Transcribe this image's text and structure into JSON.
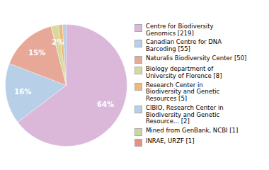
{
  "chart_data": {
    "type": "pie",
    "categories": [
      "Centre for Biodiversity\nGenomics [219]",
      "Canadian Centre for DNA\nBarcoding [55]",
      "Naturalis Biodiversity Center [50]",
      "Biology department of\nUniversity of Florence [8]",
      "Research Center in\nBiodiversity and Genetic\nResources [5]",
      "CIBIO, Research Center in\nBiodiversity and Genetic\nResource... [2]",
      "Mined from GenBank, NCBI [1]",
      "INRAE, URZF [1]"
    ],
    "values": [
      64,
      16,
      15,
      2,
      1,
      1,
      0,
      0
    ],
    "value_labels": [
      "64%",
      "16%",
      "15%",
      "2%",
      null,
      null,
      null,
      null
    ],
    "colors": [
      "#dbb8da",
      "#b8cfe8",
      "#e8a898",
      "#d8d8a0",
      "#f0b870",
      "#b8cfe8",
      "#c8d8a0",
      "#e89080"
    ],
    "data_labels": true,
    "legend": "right"
  }
}
